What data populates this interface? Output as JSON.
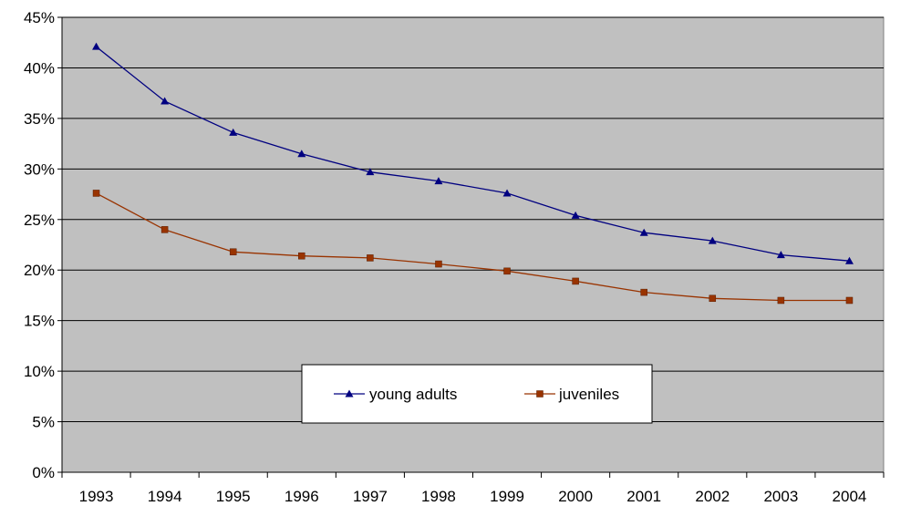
{
  "chart_data": {
    "type": "line",
    "title": "",
    "xlabel": "",
    "ylabel": "",
    "categories": [
      "1993",
      "1994",
      "1995",
      "1996",
      "1997",
      "1998",
      "1999",
      "2000",
      "2001",
      "2002",
      "2003",
      "2004"
    ],
    "ylim": [
      0,
      45
    ],
    "yticks": [
      0,
      5,
      10,
      15,
      20,
      25,
      30,
      35,
      40,
      45
    ],
    "ytick_labels": [
      "0%",
      "5%",
      "10%",
      "15%",
      "20%",
      "25%",
      "30%",
      "35%",
      "40%",
      "45%"
    ],
    "grid": true,
    "legend_position": "bottom-center",
    "plot_background": "#c0c0c0",
    "series": [
      {
        "name": "young adults",
        "color": "#000080",
        "marker": "triangle",
        "values": [
          42.1,
          36.7,
          33.6,
          31.5,
          29.7,
          28.8,
          27.6,
          25.4,
          23.7,
          22.9,
          21.5,
          20.9
        ]
      },
      {
        "name": "juveniles",
        "color": "#993300",
        "marker": "square",
        "values": [
          27.6,
          24.0,
          21.8,
          21.4,
          21.2,
          20.6,
          19.9,
          18.9,
          17.8,
          17.2,
          17.0,
          17.0
        ]
      }
    ]
  }
}
